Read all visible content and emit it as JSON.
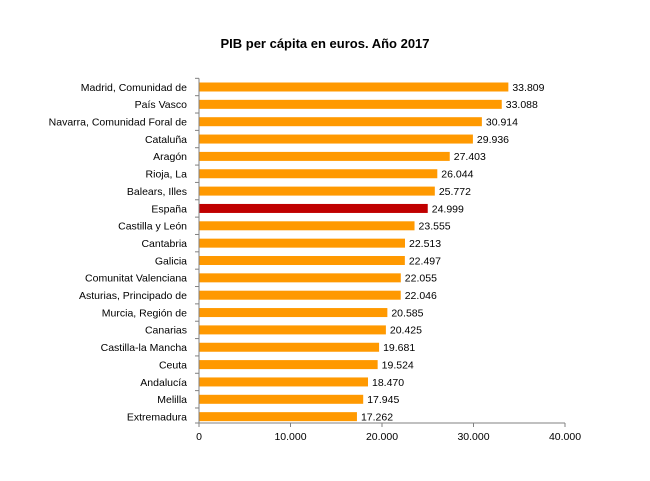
{
  "chart_data": {
    "type": "bar",
    "orientation": "horizontal",
    "title": "PIB per cápita en euros. Año 2017",
    "xlabel": "",
    "ylabel": "",
    "xlim": [
      0,
      40000
    ],
    "x_ticks": [
      0,
      10000,
      20000,
      30000,
      40000
    ],
    "x_tick_labels": [
      "0",
      "10.000",
      "20.000",
      "30.000",
      "40.000"
    ],
    "grid": false,
    "legend": "none",
    "bar_color": "#FF9900",
    "highlight_color": "#C00000",
    "highlight_category": "España",
    "categories": [
      "Madrid, Comunidad de",
      "País Vasco",
      "Navarra, Comunidad Foral de",
      "Cataluña",
      "Aragón",
      "Rioja, La",
      "Balears, Illes",
      "España",
      "Castilla y León",
      "Cantabria",
      "Galicia",
      "Comunitat Valenciana",
      "Asturias, Principado de",
      "Murcia, Región de",
      "Canarias",
      "Castilla-la Mancha",
      "Ceuta",
      "Andalucía",
      "Melilla",
      "Extremadura"
    ],
    "values": [
      33809,
      33088,
      30914,
      29936,
      27403,
      26044,
      25772,
      24999,
      23555,
      22513,
      22497,
      22055,
      22046,
      20585,
      20425,
      19681,
      19524,
      18470,
      17945,
      17262
    ],
    "value_labels": [
      "33.809",
      "33.088",
      "30.914",
      "29.936",
      "27.403",
      "26.044",
      "25.772",
      "24.999",
      "23.555",
      "22.513",
      "22.497",
      "22.055",
      "22.046",
      "20.585",
      "20.425",
      "19.681",
      "19.524",
      "18.470",
      "17.945",
      "17.262"
    ]
  }
}
